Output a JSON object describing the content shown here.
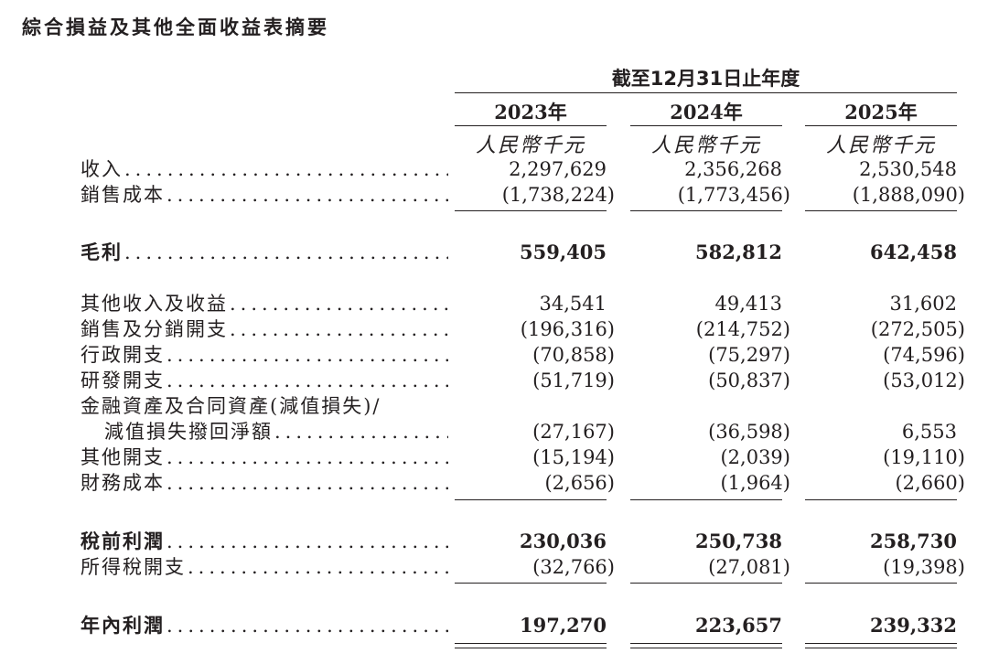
{
  "title": "綜合損益及其他全面收益表摘要",
  "period_header": "截至12月31日止年度",
  "columns": [
    {
      "year": "2023年",
      "unit": "人民幣千元"
    },
    {
      "year": "2024年",
      "unit": "人民幣千元"
    },
    {
      "year": "2025年",
      "unit": "人民幣千元"
    }
  ],
  "rows": [
    {
      "label": "收入",
      "values": [
        "2,297,629",
        "2,356,268",
        "2,530,548"
      ],
      "bold": false
    },
    {
      "label": "銷售成本",
      "values": [
        "(1,738,224)",
        "(1,773,456)",
        "(1,888,090)"
      ],
      "bold": false
    },
    {
      "label": "毛利",
      "values": [
        "559,405",
        "582,812",
        "642,458"
      ],
      "bold": true
    },
    {
      "label": "其他收入及收益",
      "values": [
        "34,541",
        "49,413",
        "31,602"
      ],
      "bold": false
    },
    {
      "label": "銷售及分銷開支",
      "values": [
        "(196,316)",
        "(214,752)",
        "(272,505)"
      ],
      "bold": false
    },
    {
      "label": "行政開支",
      "values": [
        "(70,858)",
        "(75,297)",
        "(74,596)"
      ],
      "bold": false
    },
    {
      "label": "研發開支",
      "values": [
        "(51,719)",
        "(50,837)",
        "(53,012)"
      ],
      "bold": false
    },
    {
      "label": "金融資產及合同資產(減值損失)/",
      "values": [
        "",
        "",
        ""
      ],
      "bold": false
    },
    {
      "label": "減值損失撥回淨額",
      "values": [
        "(27,167)",
        "(36,598)",
        "6,553"
      ],
      "bold": false
    },
    {
      "label": "其他開支",
      "values": [
        "(15,194)",
        "(2,039)",
        "(19,110)"
      ],
      "bold": false
    },
    {
      "label": "財務成本",
      "values": [
        "(2,656)",
        "(1,964)",
        "(2,660)"
      ],
      "bold": false
    },
    {
      "label": "稅前利潤",
      "values": [
        "230,036",
        "250,738",
        "258,730"
      ],
      "bold": true
    },
    {
      "label": "所得稅開支",
      "values": [
        "(32,766)",
        "(27,081)",
        "(19,398)"
      ],
      "bold": false
    },
    {
      "label": "年內利潤",
      "values": [
        "197,270",
        "223,657",
        "239,332"
      ],
      "bold": true
    }
  ]
}
